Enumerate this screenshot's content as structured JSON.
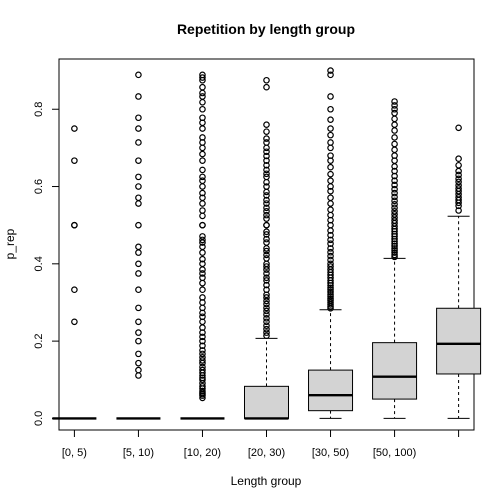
{
  "chart_data": {
    "type": "boxplot",
    "title": "Repetition by length group",
    "xlabel": "Length group",
    "ylabel": "p_rep",
    "ylim": [
      -0.03,
      0.93
    ],
    "yticks": [
      0.0,
      0.2,
      0.4,
      0.6,
      0.8
    ],
    "ytick_labels": [
      "0.0",
      "0.2",
      "0.4",
      "0.6",
      "0.8"
    ],
    "box_fill": "#d3d3d3",
    "grid": false,
    "categories": [
      "[0, 5)",
      "[5, 10)",
      "[10, 20)",
      "[20, 30)",
      "[30, 50)",
      "[50, 100)",
      ""
    ],
    "boxes": [
      {
        "q1": 0.0,
        "median": 0.0,
        "q3": 0.0,
        "whisker_low": 0.0,
        "whisker_high": 0.0,
        "outliers": [
          0.25,
          0.333,
          0.5,
          0.5,
          0.667,
          0.75
        ]
      },
      {
        "q1": 0.0,
        "median": 0.0,
        "q3": 0.0,
        "whisker_low": 0.0,
        "whisker_high": 0.0,
        "outliers": [
          0.111,
          0.125,
          0.143,
          0.167,
          0.2,
          0.222,
          0.25,
          0.286,
          0.333,
          0.375,
          0.4,
          0.429,
          0.444,
          0.5,
          0.556,
          0.571,
          0.6,
          0.625,
          0.667,
          0.714,
          0.75,
          0.778,
          0.833,
          0.889
        ]
      },
      {
        "q1": 0.0,
        "median": 0.0,
        "q3": 0.0,
        "whisker_low": 0.0,
        "whisker_high": 0.0,
        "outliers": [
          0.053,
          0.059,
          0.063,
          0.067,
          0.071,
          0.077,
          0.083,
          0.091,
          0.1,
          0.105,
          0.111,
          0.118,
          0.125,
          0.133,
          0.143,
          0.15,
          0.158,
          0.167,
          0.176,
          0.188,
          0.2,
          0.211,
          0.222,
          0.235,
          0.25,
          0.263,
          0.273,
          0.286,
          0.3,
          0.313,
          0.333,
          0.35,
          0.364,
          0.375,
          0.385,
          0.4,
          0.412,
          0.429,
          0.444,
          0.455,
          0.462,
          0.471,
          0.5,
          0.5,
          0.524,
          0.538,
          0.556,
          0.571,
          0.583,
          0.6,
          0.615,
          0.625,
          0.643,
          0.667,
          0.684,
          0.7,
          0.714,
          0.727,
          0.75,
          0.765,
          0.778,
          0.8,
          0.818,
          0.833,
          0.842,
          0.857,
          0.875,
          0.882,
          0.889
        ]
      },
      {
        "q1": 0.0,
        "median": 0.0,
        "q3": 0.083,
        "whisker_low": 0.0,
        "whisker_high": 0.207,
        "outliers": [
          0.214,
          0.222,
          0.231,
          0.24,
          0.25,
          0.259,
          0.269,
          0.278,
          0.286,
          0.296,
          0.304,
          0.313,
          0.32,
          0.333,
          0.345,
          0.357,
          0.364,
          0.375,
          0.385,
          0.393,
          0.4,
          0.414,
          0.423,
          0.433,
          0.44,
          0.455,
          0.464,
          0.476,
          0.483,
          0.5,
          0.5,
          0.517,
          0.526,
          0.536,
          0.545,
          0.556,
          0.565,
          0.577,
          0.586,
          0.6,
          0.611,
          0.625,
          0.633,
          0.643,
          0.655,
          0.667,
          0.679,
          0.69,
          0.7,
          0.714,
          0.724,
          0.742,
          0.76,
          0.857,
          0.875
        ]
      },
      {
        "q1": 0.02,
        "median": 0.06,
        "q3": 0.125,
        "whisker_low": 0.0,
        "whisker_high": 0.281,
        "outliers": [
          0.285,
          0.29,
          0.295,
          0.3,
          0.305,
          0.31,
          0.316,
          0.321,
          0.327,
          0.333,
          0.338,
          0.344,
          0.35,
          0.357,
          0.364,
          0.371,
          0.378,
          0.385,
          0.393,
          0.4,
          0.41,
          0.42,
          0.43,
          0.44,
          0.452,
          0.462,
          0.474,
          0.486,
          0.5,
          0.513,
          0.526,
          0.54,
          0.556,
          0.571,
          0.588,
          0.6,
          0.615,
          0.632,
          0.65,
          0.667,
          0.68,
          0.7,
          0.714,
          0.733,
          0.75,
          0.773,
          0.8,
          0.833,
          0.889,
          0.9
        ]
      },
      {
        "q1": 0.05,
        "median": 0.108,
        "q3": 0.196,
        "whisker_low": 0.0,
        "whisker_high": 0.414,
        "outliers": [
          0.418,
          0.423,
          0.429,
          0.435,
          0.44,
          0.446,
          0.452,
          0.458,
          0.464,
          0.471,
          0.477,
          0.484,
          0.49,
          0.497,
          0.505,
          0.512,
          0.52,
          0.528,
          0.536,
          0.545,
          0.554,
          0.563,
          0.573,
          0.583,
          0.593,
          0.604,
          0.615,
          0.627,
          0.64,
          0.652,
          0.667,
          0.68,
          0.695,
          0.71,
          0.727,
          0.745,
          0.76,
          0.775,
          0.79,
          0.8,
          0.81,
          0.82
        ]
      },
      {
        "q1": 0.115,
        "median": 0.193,
        "q3": 0.285,
        "whisker_low": 0.0,
        "whisker_high": 0.523,
        "outliers": [
          0.538,
          0.55,
          0.558,
          0.565,
          0.572,
          0.58,
          0.588,
          0.595,
          0.603,
          0.612,
          0.62,
          0.63,
          0.64,
          0.655,
          0.672,
          0.752
        ]
      }
    ]
  }
}
